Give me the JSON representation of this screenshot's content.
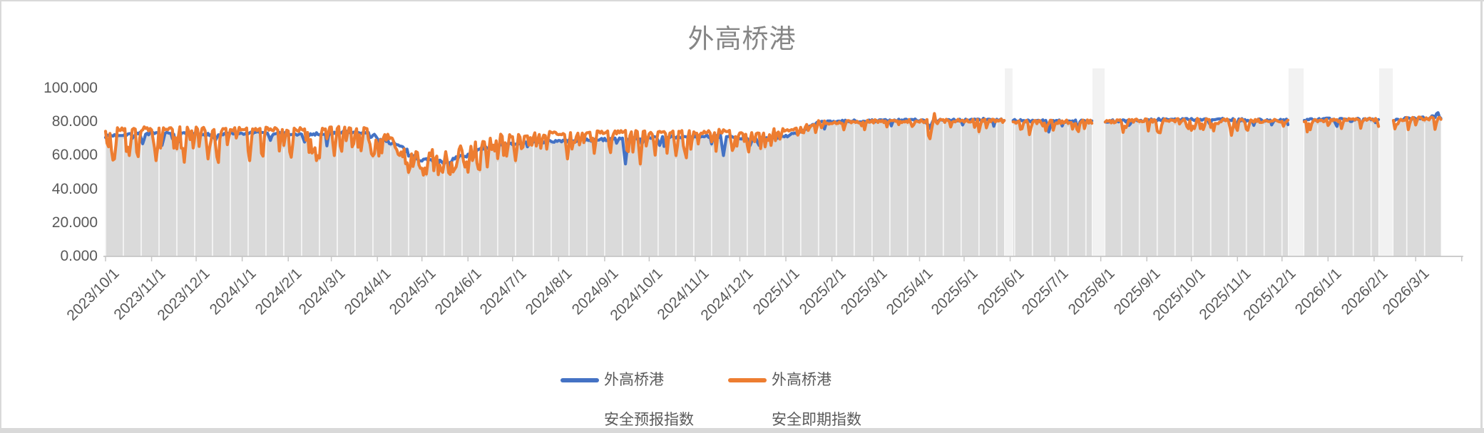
{
  "window": {
    "border_color": "#d9d9d9",
    "background": "#ffffff"
  },
  "chart_data": {
    "type": "line",
    "title": "外高桥港",
    "seed": 7,
    "y_axis": {
      "min": 0,
      "max": 100,
      "tick_values": [
        0,
        20,
        40,
        60,
        80,
        100
      ],
      "tick_labels": [
        "0.000",
        "20.000",
        "40.000",
        "60.000",
        "80.000",
        "100.000"
      ],
      "label_color": "#595959"
    },
    "x_axis": {
      "start": "2023/10/1",
      "axis_end": "2026/4/1",
      "label_rotation_deg": 45,
      "label_color": "#595959",
      "tick_labels": [
        "2023/10/1",
        "2023/11/1",
        "2023/12/1",
        "2024/1/1",
        "2024/2/1",
        "2024/3/1",
        "2024/4/1",
        "2024/5/1",
        "2024/6/1",
        "2024/7/1",
        "2024/8/1",
        "2024/9/1",
        "2024/10/1",
        "2024/11/1",
        "2024/12/1",
        "2025/1/1",
        "2025/2/1",
        "2025/3/1",
        "2025/4/1",
        "2025/5/1",
        "2025/6/1",
        "2025/7/1",
        "2025/8/1",
        "2025/9/1",
        "2025/10/1",
        "2025/11/1",
        "2025/12/1",
        "2026/1/1",
        "2026/2/1",
        "2026/3/1"
      ]
    },
    "data_end": "2026/3/18",
    "gaps": [
      {
        "from": "2025/5/29",
        "to": "2025/6/2"
      },
      {
        "from": "2025/7/27",
        "to": "2025/8/3"
      },
      {
        "from": "2025/12/6",
        "to": "2025/12/15"
      },
      {
        "from": "2026/2/5",
        "to": "2026/2/13"
      }
    ],
    "area": {
      "color": "#dadada",
      "separator_color": "#f5f5f5",
      "separator_every_days": 12,
      "gap_fill": "#f2f2f2",
      "follows": "min-of-series"
    },
    "axis_line_color": "#c6c6c6",
    "series": [
      {
        "name": "外高桥港安全预报指数",
        "color": "#4472C4",
        "keyframes": [
          [
            "2023/10/1",
            71.5
          ],
          [
            "2023/10/20",
            73
          ],
          [
            "2023/11/15",
            73
          ],
          [
            "2023/12/15",
            72.5
          ],
          [
            "2024/1/15",
            73.5
          ],
          [
            "2024/2/15",
            72.5
          ],
          [
            "2024/3/10",
            74
          ],
          [
            "2024/3/25",
            73.5
          ],
          [
            "2024/4/15",
            66
          ],
          [
            "2024/4/28",
            58.5
          ],
          [
            "2024/5/12",
            56
          ],
          [
            "2024/5/24",
            58
          ],
          [
            "2024/6/10",
            63.5
          ],
          [
            "2024/6/25",
            66.5
          ],
          [
            "2024/7/15",
            68
          ],
          [
            "2024/8/15",
            69
          ],
          [
            "2024/9/15",
            70
          ],
          [
            "2024/10/15",
            71
          ],
          [
            "2024/11/15",
            71.5
          ],
          [
            "2024/12/10",
            70
          ],
          [
            "2024/12/28",
            70.5
          ],
          [
            "2025/1/10",
            74
          ],
          [
            "2025/1/22",
            79.5
          ],
          [
            "2025/2/15",
            80.5
          ],
          [
            "2025/3/15",
            81
          ],
          [
            "2025/4/15",
            81
          ],
          [
            "2025/5/15",
            81.5
          ],
          [
            "2025/6/15",
            80.5
          ],
          [
            "2025/7/15",
            80.5
          ],
          [
            "2025/8/15",
            80.5
          ],
          [
            "2025/9/15",
            81.5
          ],
          [
            "2025/10/15",
            81.5
          ],
          [
            "2025/11/15",
            81
          ],
          [
            "2025/12/15",
            81.5
          ],
          [
            "2026/1/15",
            81.5
          ],
          [
            "2026/2/15",
            81.5
          ],
          [
            "2026/3/10",
            82.5
          ],
          [
            "2026/3/18",
            84
          ]
        ],
        "noise_periods": [
          {
            "from": "2023/10/1",
            "to": "2024/3/24",
            "amp": 0.8,
            "dip_prob": 0.05,
            "dip_depth": 7
          },
          {
            "from": "2024/3/25",
            "to": "2024/6/20",
            "amp": 1.3,
            "dip_prob": 0.1,
            "dip_depth": 4
          },
          {
            "from": "2024/6/21",
            "to": "2024/12/31",
            "amp": 0.8,
            "dip_prob": 0.05,
            "dip_depth": 6
          },
          {
            "from": "2025/1/1",
            "to": "2026/3/18",
            "amp": 0.8,
            "dip_prob": 0.05,
            "dip_depth": 3.5
          }
        ],
        "spikes": [
          [
            "2023/10/26",
            67
          ],
          [
            "2023/11/8",
            66
          ],
          [
            "2023/11/19",
            68
          ],
          [
            "2023/12/14",
            69
          ],
          [
            "2024/1/20",
            69
          ],
          [
            "2024/2/12",
            68
          ],
          [
            "2024/9/15",
            55
          ],
          [
            "2024/10/8",
            66
          ],
          [
            "2024/11/20",
            60
          ],
          [
            "2024/12/8",
            66
          ],
          [
            "2024/12/14",
            66
          ],
          [
            "2025/4/8",
            76
          ],
          [
            "2025/6/27",
            74
          ],
          [
            "2025/10/31",
            77
          ],
          [
            "2026/3/16",
            85.5
          ]
        ]
      },
      {
        "name": "外高桥港安全即期指数",
        "color": "#ED7D31",
        "keyframes": [
          [
            "2023/10/1",
            75.5
          ],
          [
            "2023/11/15",
            76
          ],
          [
            "2023/12/15",
            75.5
          ],
          [
            "2024/1/15",
            76
          ],
          [
            "2024/2/15",
            75.5
          ],
          [
            "2024/3/15",
            76.5
          ],
          [
            "2024/3/28",
            75
          ],
          [
            "2024/4/15",
            68
          ],
          [
            "2024/4/28",
            63
          ],
          [
            "2024/5/12",
            61
          ],
          [
            "2024/5/24",
            63
          ],
          [
            "2024/6/10",
            67
          ],
          [
            "2024/6/25",
            71
          ],
          [
            "2024/7/15",
            73
          ],
          [
            "2024/8/15",
            73.5
          ],
          [
            "2024/9/15",
            74
          ],
          [
            "2024/10/15",
            74
          ],
          [
            "2024/11/15",
            74.5
          ],
          [
            "2024/12/15",
            74
          ],
          [
            "2025/1/10",
            76
          ],
          [
            "2025/1/22",
            80
          ],
          [
            "2025/2/15",
            80
          ],
          [
            "2025/3/15",
            80.5
          ],
          [
            "2025/4/15",
            80.5
          ],
          [
            "2025/5/15",
            81
          ],
          [
            "2025/6/15",
            80
          ],
          [
            "2025/7/15",
            80
          ],
          [
            "2025/8/15",
            80.5
          ],
          [
            "2025/9/15",
            81
          ],
          [
            "2025/10/15",
            81
          ],
          [
            "2025/11/15",
            80.5
          ],
          [
            "2025/12/15",
            81
          ],
          [
            "2026/1/15",
            81
          ],
          [
            "2026/2/15",
            81.5
          ],
          [
            "2026/3/18",
            82.5
          ]
        ],
        "noise_periods": [
          {
            "from": "2023/10/1",
            "to": "2024/3/24",
            "amp": 1.3,
            "dip_prob": 0.28,
            "dip_depth": 15
          },
          {
            "from": "2024/3/25",
            "to": "2024/6/24",
            "amp": 2.6,
            "dip_prob": 0.33,
            "dip_depth": 12
          },
          {
            "from": "2024/6/25",
            "to": "2024/12/31",
            "amp": 1.3,
            "dip_prob": 0.24,
            "dip_depth": 12
          },
          {
            "from": "2025/1/1",
            "to": "2025/3/31",
            "amp": 1.1,
            "dip_prob": 0.15,
            "dip_depth": 5
          },
          {
            "from": "2025/4/1",
            "to": "2026/3/18",
            "amp": 1.1,
            "dip_prob": 0.13,
            "dip_depth": 7
          }
        ],
        "spikes": [
          [
            "2023/10/7",
            58
          ],
          [
            "2023/10/17",
            60
          ],
          [
            "2023/11/4",
            57
          ],
          [
            "2023/11/23",
            56
          ],
          [
            "2023/12/9",
            58
          ],
          [
            "2024/1/6",
            57
          ],
          [
            "2024/2/3",
            59
          ],
          [
            "2024/2/20",
            57
          ],
          [
            "2024/3/3",
            60
          ],
          [
            "2024/4/22",
            50
          ],
          [
            "2024/5/4",
            49
          ],
          [
            "2024/5/15",
            50
          ],
          [
            "2024/6/8",
            52
          ],
          [
            "2024/7/3",
            57
          ],
          [
            "2024/8/7",
            58
          ],
          [
            "2024/9/25",
            55
          ],
          [
            "2024/10/19",
            60
          ],
          [
            "2024/11/26",
            63
          ],
          [
            "2025/4/8",
            70
          ],
          [
            "2025/4/11",
            85
          ],
          [
            "2025/10/28",
            72
          ]
        ]
      }
    ],
    "legend": [
      {
        "line1": "外高桥港",
        "line2": "安全预报指数",
        "color": "#4472C4"
      },
      {
        "line1": "外高桥港",
        "line2": "安全即期指数",
        "color": "#ED7D31"
      }
    ]
  }
}
